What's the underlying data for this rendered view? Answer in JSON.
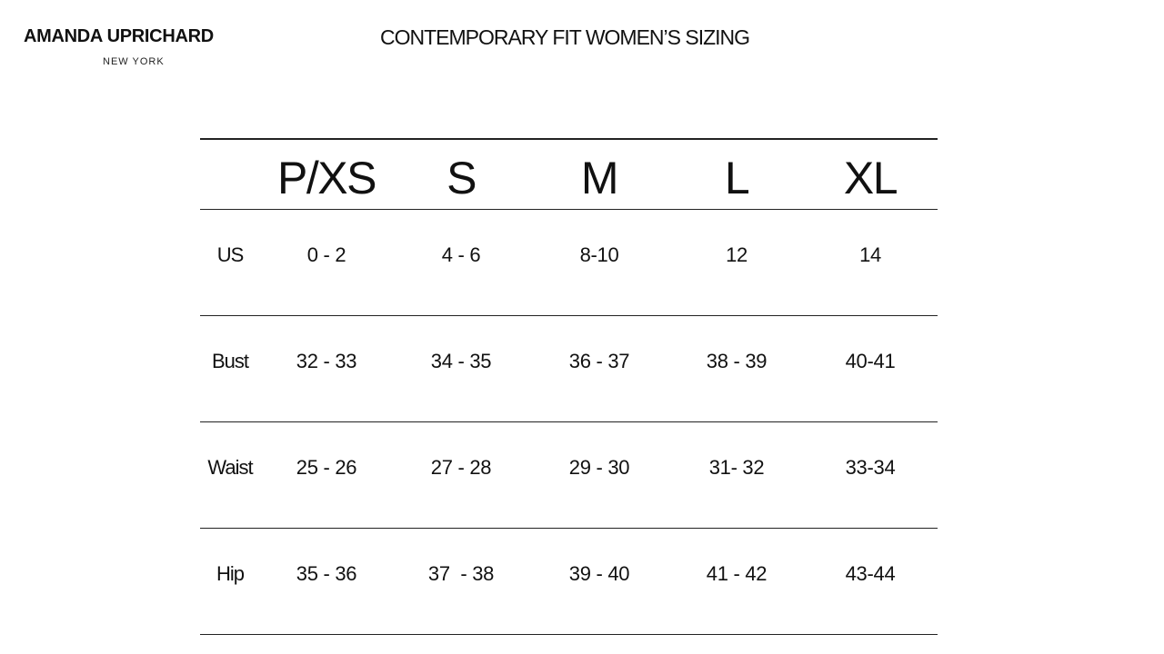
{
  "brand": {
    "name": "AMANDA UPRICHARD",
    "city": "NEW YORK"
  },
  "title": "CONTEMPORARY FIT WOMEN’S SIZING",
  "table": {
    "columns": [
      "P/XS",
      "S",
      "M",
      "L",
      "XL"
    ],
    "rows": [
      {
        "label": "US",
        "values": [
          "0 - 2",
          "4 - 6",
          "8-10",
          "12",
          "14"
        ]
      },
      {
        "label": "Bust",
        "values": [
          "32 - 33",
          "34 - 35",
          "36 - 37",
          "38 - 39",
          "40-41"
        ]
      },
      {
        "label": "Waist",
        "values": [
          "25 - 26",
          "27 - 28",
          "29 - 30",
          "31- 32",
          "33-34"
        ]
      },
      {
        "label": "Hip",
        "values": [
          "35 - 36",
          "37  - 38",
          "39 - 40",
          "41 - 42",
          "43-44"
        ]
      }
    ]
  }
}
